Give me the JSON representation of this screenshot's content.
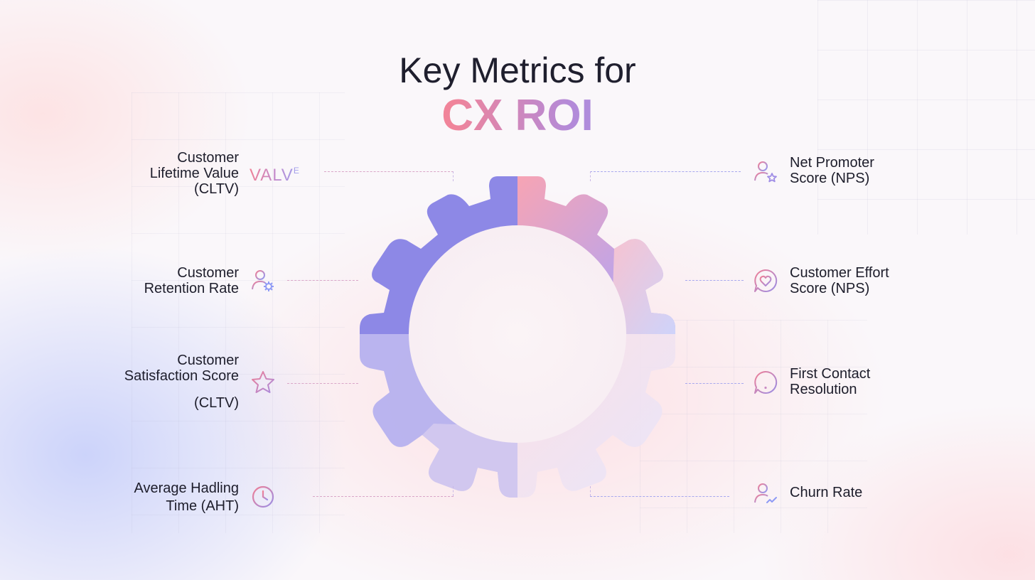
{
  "title": "Key Metrics for",
  "title_accent": "CX ROI",
  "colors": {
    "accent_pink": "#ff7f8e",
    "accent_purple": "#b48ad8",
    "accent_blue": "#8f9bf5",
    "gear_violet": "#8d88e6"
  },
  "left_metrics": [
    {
      "lines": [
        "Customer",
        "Lifetime Value",
        "(CLTV)"
      ],
      "icon": "valve-wordmark",
      "icon_text": "VALV",
      "icon_sup": "E"
    },
    {
      "lines": [
        "Customer",
        "Retention Rate"
      ],
      "icon": "user-gear-icon"
    },
    {
      "lines": [
        "Customer",
        "Satisfaction Score",
        "(CLTV)"
      ],
      "icon": "star-icon"
    },
    {
      "lines": [
        "Average Hadling",
        "Time (AHT)"
      ],
      "icon": "clock-icon"
    }
  ],
  "right_metrics": [
    {
      "lines": [
        "Net Promoter",
        "Score (NPS)"
      ],
      "icon": "user-star-icon"
    },
    {
      "lines": [
        "Customer Effort",
        "Score (NPS)"
      ],
      "icon": "heart-chat-icon"
    },
    {
      "lines": [
        "First Contact",
        "Resolution"
      ],
      "icon": "alert-chat-icon"
    },
    {
      "lines": [
        "Churn Rate"
      ],
      "icon": "user-trend-icon"
    }
  ]
}
